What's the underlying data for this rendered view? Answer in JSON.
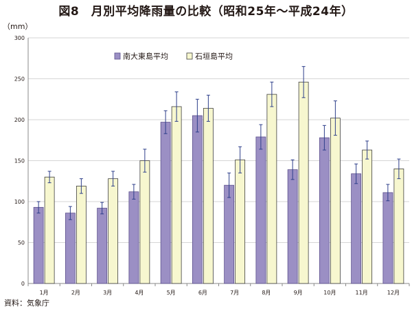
{
  "title": "図8　月別平均降雨量の比較（昭和25年～平成24年）",
  "unit_label": "（mm）",
  "source": "資料：気象庁",
  "colors": {
    "series1_fill": "#9b8fc4",
    "series1_stroke": "#5b4f8c",
    "series2_fill": "#f7f7cf",
    "series2_stroke": "#3d3d3d",
    "error_bar": "#2c3e8a",
    "axis": "#888888",
    "grid": "#c8c8c8"
  },
  "chart_data": {
    "type": "bar",
    "categories": [
      "1月",
      "2月",
      "3月",
      "4月",
      "5月",
      "6月",
      "7月",
      "8月",
      "9月",
      "10月",
      "11月",
      "12月"
    ],
    "series": [
      {
        "name": "南大東島平均",
        "values": [
          93,
          86,
          92,
          112,
          197,
          205,
          120,
          179,
          139,
          178,
          134,
          111
        ],
        "error": [
          7,
          8,
          7,
          9,
          14,
          20,
          15,
          15,
          12,
          15,
          12,
          10
        ]
      },
      {
        "name": "石垣島平均",
        "values": [
          130,
          119,
          128,
          150,
          216,
          214,
          151,
          231,
          246,
          202,
          163,
          140
        ],
        "error": [
          7,
          9,
          9,
          14,
          18,
          16,
          16,
          15,
          19,
          21,
          11,
          12
        ]
      }
    ],
    "ylim": [
      0,
      300
    ],
    "yticks": [
      0,
      50,
      100,
      150,
      200,
      250,
      300
    ],
    "grid": true,
    "legend": "top-left",
    "error_bars": true
  }
}
